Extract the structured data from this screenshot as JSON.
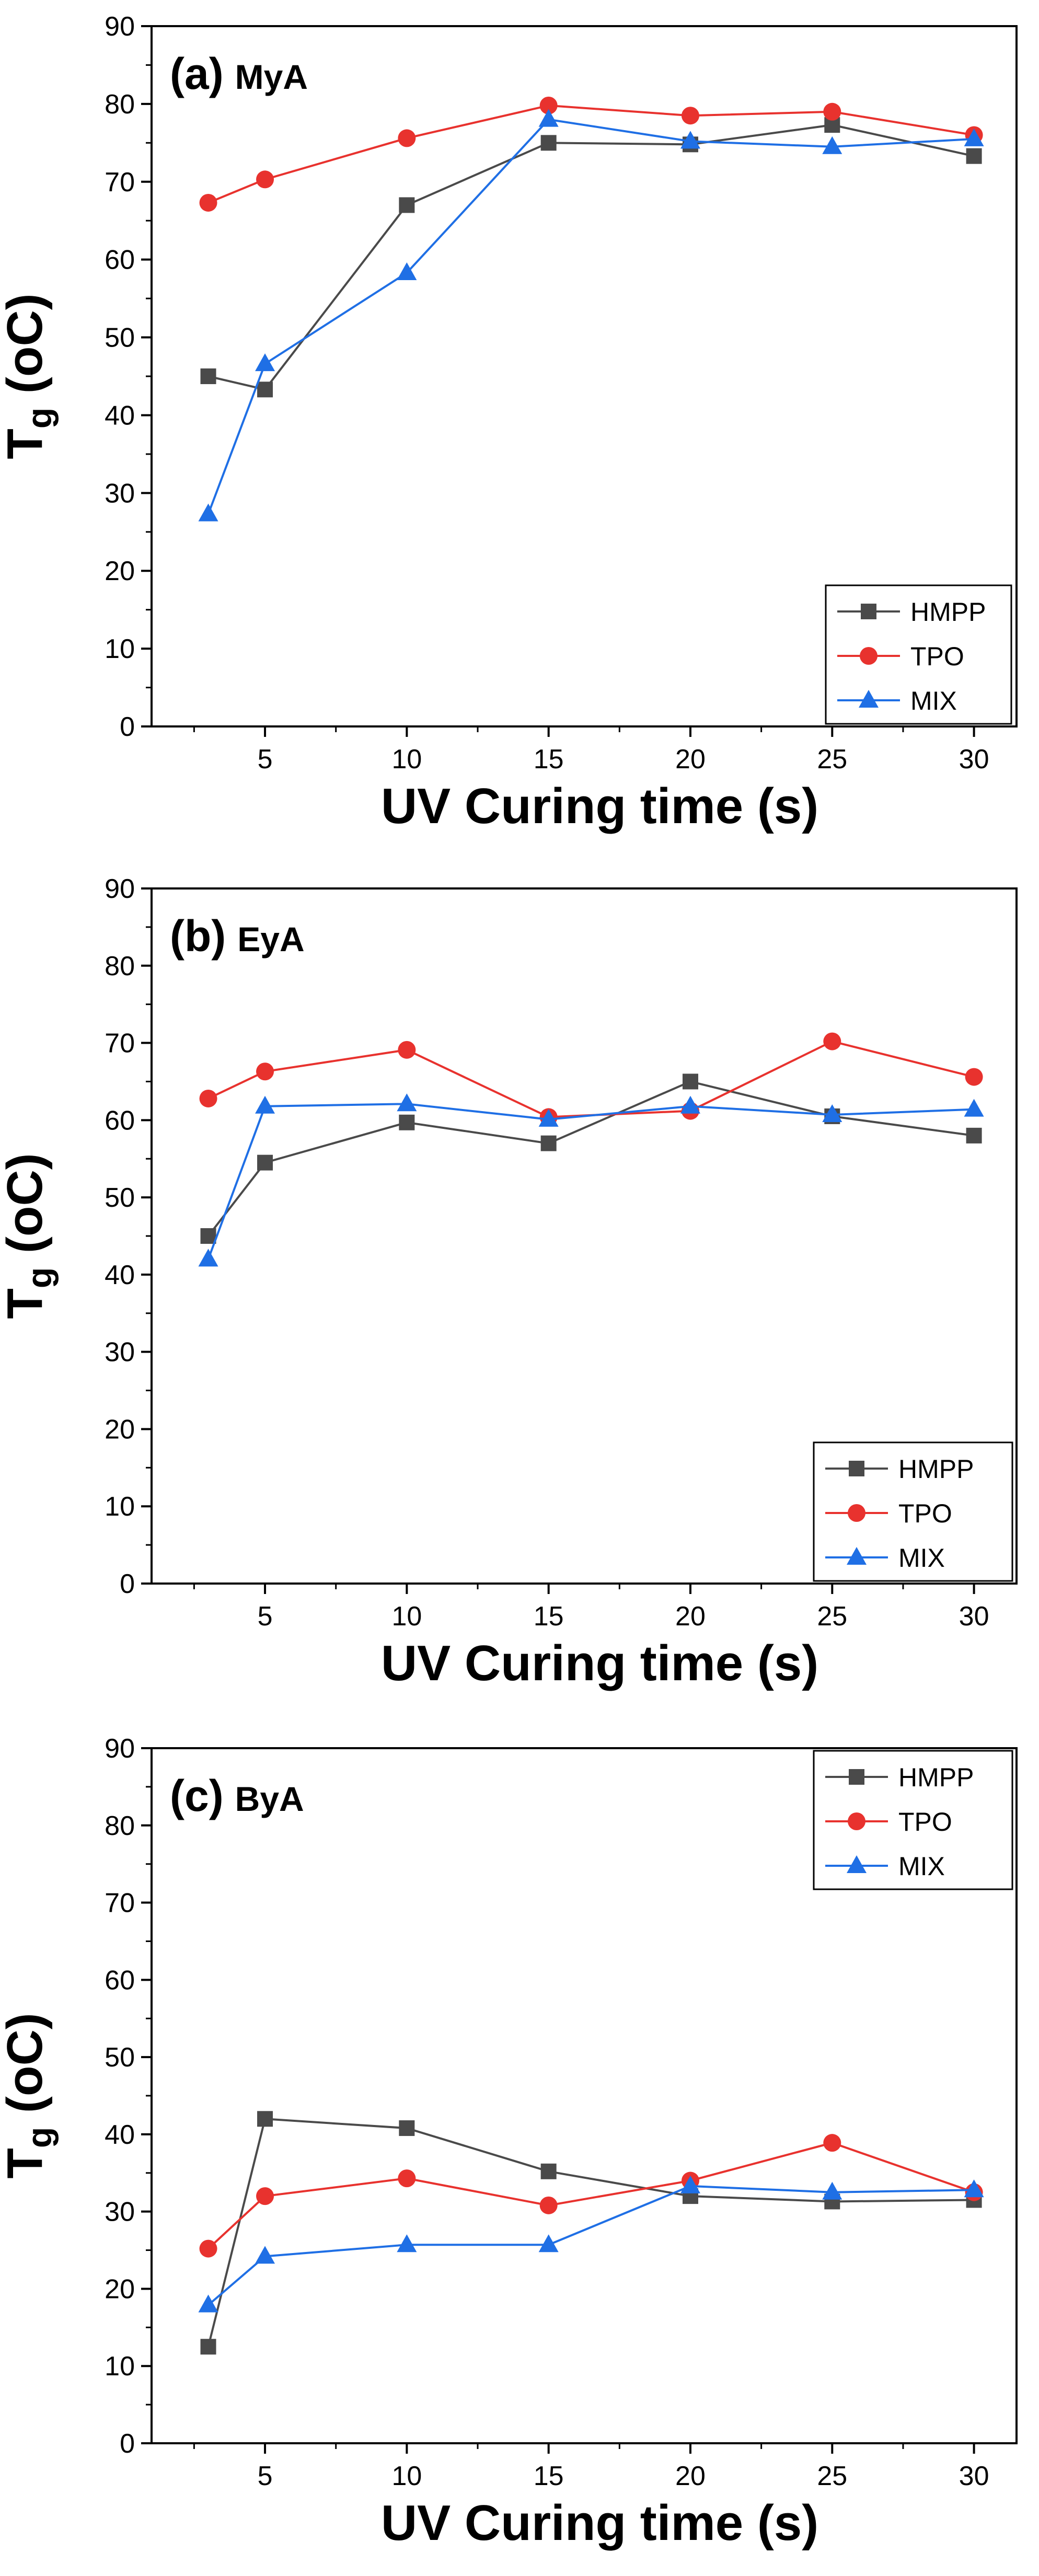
{
  "figure": {
    "xlabel": "UV Curing time (s)",
    "ylabel_main": "T",
    "ylabel_sub": "g",
    "ylabel_units": " (oC)"
  },
  "colors": {
    "HMPP": "#4a4a4a",
    "TPO": "#e8322e",
    "MIX": "#1f6fe5"
  },
  "chart_data": [
    {
      "type": "line",
      "panel_label": "(a)",
      "panel_name": "MyA",
      "xlabel": "UV Curing time (s)",
      "ylabel": "Tg (oC)",
      "xlim": [
        1,
        31.5
      ],
      "ylim": [
        0,
        90
      ],
      "xticks": [
        5,
        10,
        15,
        20,
        25,
        30
      ],
      "yticks": [
        0,
        10,
        20,
        30,
        40,
        50,
        60,
        70,
        80,
        90
      ],
      "legend_position": "bottom-right",
      "x": [
        3,
        5,
        10,
        15,
        20,
        25,
        30
      ],
      "series": [
        {
          "name": "HMPP",
          "marker": "square",
          "values": [
            45,
            43.3,
            67,
            75,
            74.8,
            77.3,
            73.3
          ]
        },
        {
          "name": "TPO",
          "marker": "circle",
          "values": [
            67.3,
            70.3,
            75.6,
            79.8,
            78.5,
            79,
            76
          ]
        },
        {
          "name": "MIX",
          "marker": "triangle",
          "values": [
            27.3,
            46.6,
            58.3,
            78,
            75.2,
            74.5,
            75.5
          ]
        }
      ]
    },
    {
      "type": "line",
      "panel_label": "(b)",
      "panel_name": "EyA",
      "xlabel": "UV Curing time (s)",
      "ylabel": "Tg (oC)",
      "xlim": [
        1,
        31.5
      ],
      "ylim": [
        0,
        90
      ],
      "xticks": [
        5,
        10,
        15,
        20,
        25,
        30
      ],
      "yticks": [
        0,
        10,
        20,
        30,
        40,
        50,
        60,
        70,
        80,
        90
      ],
      "legend_position": "bottom-right",
      "x": [
        3,
        5,
        10,
        15,
        20,
        25,
        30
      ],
      "series": [
        {
          "name": "HMPP",
          "marker": "square",
          "values": [
            45,
            54.5,
            59.7,
            57,
            65,
            60.5,
            58
          ]
        },
        {
          "name": "TPO",
          "marker": "circle",
          "values": [
            62.8,
            66.3,
            69.1,
            60.4,
            61.2,
            70.2,
            65.6
          ]
        },
        {
          "name": "MIX",
          "marker": "triangle",
          "values": [
            42,
            61.8,
            62.1,
            60.1,
            61.8,
            60.7,
            61.4
          ]
        }
      ]
    },
    {
      "type": "line",
      "panel_label": "(c)",
      "panel_name": "ByA",
      "xlabel": "UV Curing time (s)",
      "ylabel": "Tg (oC)",
      "xlim": [
        1,
        31.5
      ],
      "ylim": [
        0,
        90
      ],
      "xticks": [
        5,
        10,
        15,
        20,
        25,
        30
      ],
      "yticks": [
        0,
        10,
        20,
        30,
        40,
        50,
        60,
        70,
        80,
        90
      ],
      "legend_position": "top-right",
      "x": [
        3,
        5,
        10,
        15,
        20,
        25,
        30
      ],
      "series": [
        {
          "name": "HMPP",
          "marker": "square",
          "values": [
            12.5,
            42,
            40.8,
            35.2,
            32,
            31.3,
            31.5
          ]
        },
        {
          "name": "TPO",
          "marker": "circle",
          "values": [
            25.2,
            32,
            34.3,
            30.8,
            34,
            38.9,
            32.5
          ]
        },
        {
          "name": "MIX",
          "marker": "triangle",
          "values": [
            17.9,
            24.2,
            25.7,
            25.7,
            33.3,
            32.5,
            32.8
          ]
        }
      ]
    }
  ]
}
